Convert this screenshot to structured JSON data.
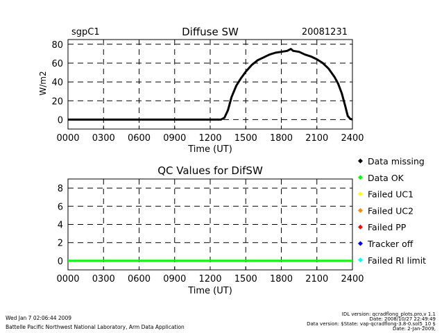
{
  "header": {
    "site": "sgpC1",
    "date": "20081231"
  },
  "chart_data": [
    {
      "type": "line",
      "title": "Diffuse SW",
      "xlabel": "Time (UT)",
      "ylabel": "W/m2",
      "xlim": [
        0,
        2400
      ],
      "ylim": [
        -10,
        85
      ],
      "x_ticks": [
        "0000",
        "0300",
        "0600",
        "0900",
        "1200",
        "1500",
        "1800",
        "2100",
        "2400"
      ],
      "y_ticks": [
        "0",
        "20",
        "40",
        "60",
        "80"
      ],
      "grid": true,
      "series": [
        {
          "color": "#000000",
          "x": [
            0,
            300,
            600,
            900,
            1200,
            1290,
            1320,
            1350,
            1380,
            1420,
            1460,
            1500,
            1550,
            1600,
            1650,
            1700,
            1750,
            1800,
            1850,
            1880,
            1900,
            1950,
            2000,
            2050,
            2100,
            2150,
            2200,
            2250,
            2280,
            2310,
            2340,
            2360,
            2380,
            2400
          ],
          "values": [
            0,
            0,
            0,
            0,
            0,
            0,
            2,
            10,
            24,
            36,
            44,
            51,
            58,
            63,
            66,
            69,
            71,
            72,
            73,
            75,
            73,
            72,
            69,
            67,
            64,
            60,
            54,
            45,
            38,
            28,
            14,
            4,
            1,
            0
          ]
        }
      ]
    },
    {
      "type": "line",
      "title": "QC Values for DifSW",
      "xlabel": "Time (UT)",
      "xlim": [
        0,
        2400
      ],
      "ylim": [
        -1,
        9
      ],
      "x_ticks": [
        "0000",
        "0300",
        "0600",
        "0900",
        "1200",
        "1500",
        "1800",
        "2100",
        "2400"
      ],
      "y_ticks": [
        "0",
        "2",
        "4",
        "6",
        "8"
      ],
      "grid": true,
      "series": [
        {
          "color": "#00ff00",
          "x": [
            0,
            2400
          ],
          "values": [
            0,
            0
          ]
        }
      ],
      "legend": {
        "placement": "right",
        "entries": [
          {
            "label": "Data missing",
            "color": "#000000"
          },
          {
            "label": "Data OK",
            "color": "#00ff00"
          },
          {
            "label": "Failed UC1",
            "color": "#ffff00"
          },
          {
            "label": "Failed UC2",
            "color": "#ff8800"
          },
          {
            "label": "Failed PP",
            "color": "#ff0000"
          },
          {
            "label": "Tracker off",
            "color": "#0000ff"
          },
          {
            "label": "Failed RI limit",
            "color": "#00ffff"
          }
        ]
      }
    }
  ],
  "footer": {
    "run_date": "Wed Jan  7 02:06:44 2009",
    "institution": "Battelle Pacific Northwest National Laboratory, Arm Data Application",
    "idl_version": "IDL version: qcradflong_plots.pro,v 1.1",
    "idl_date": "Date: 2008/10/27 22:49:49",
    "data_version": "Data version: $State: vap-qcradflong-3.8-0.sol5_10 $",
    "data_date": "Date: 2-Jan-2009,"
  }
}
